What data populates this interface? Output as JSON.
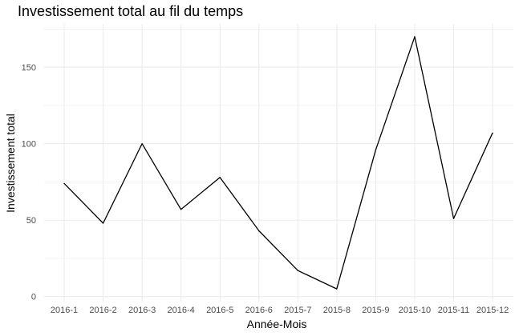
{
  "chart_data": {
    "type": "line",
    "title": "Investissement total au fil du temps",
    "xlabel": "Année-Mois",
    "ylabel": "Investissement total",
    "categories": [
      "2016-1",
      "2016-2",
      "2016-3",
      "2016-4",
      "2016-5",
      "2016-6",
      "2015-7",
      "2015-8",
      "2015-9",
      "2015-10",
      "2015-11",
      "2015-12"
    ],
    "series": [
      {
        "values": [
          74,
          48,
          100,
          57,
          78,
          43,
          17,
          5,
          96,
          170,
          51,
          107
        ]
      }
    ],
    "y_ticks": [
      0,
      50,
      100,
      150
    ],
    "ylim": [
      -3.3,
      178.3
    ],
    "grid": true,
    "line_color": "#000000",
    "grid_color": "#ebebeb",
    "background": "#ffffff"
  }
}
